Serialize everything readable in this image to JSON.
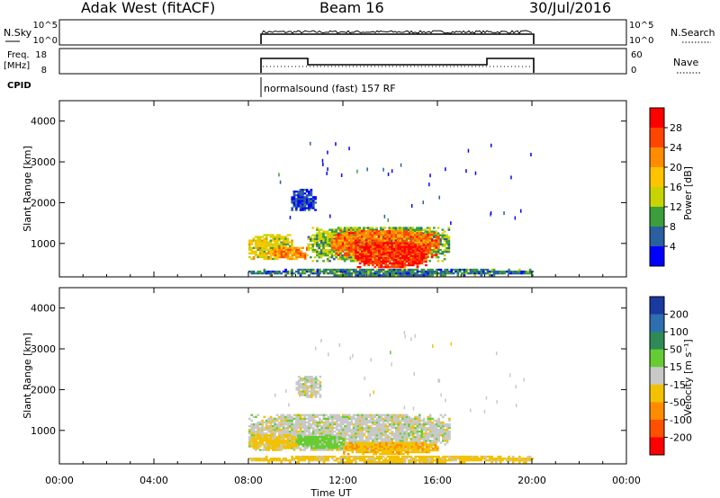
{
  "header": {
    "title": "Adak West (fitACF)",
    "beam": "Beam 16",
    "date": "30/Jul/2016"
  },
  "panels": {
    "nsky": {
      "label": "N.Sky",
      "left_ticks": [
        "10^5",
        "10^0"
      ],
      "right_ticks": [
        "10^5",
        "10^0"
      ],
      "right_label": "N.Search"
    },
    "freq": {
      "label_1": "Freq.",
      "label_2": "[MHz]",
      "left_ticks": [
        "18",
        "8"
      ],
      "right_ticks": [
        "60",
        "0"
      ],
      "right_label": "Nave"
    },
    "cpid": {
      "label": "CPID",
      "text": "normalsound (fast) 157 RF"
    }
  },
  "colorbars": {
    "power": {
      "label": "Power [dB]",
      "ticks": [
        "28",
        "24",
        "20",
        "16",
        "12",
        "8",
        "4"
      ],
      "colors": [
        "#ff0000",
        "#ff4500",
        "#ff8c00",
        "#ffc300",
        "#c8d400",
        "#3a9e3a",
        "#2a5fa0",
        "#0000ff"
      ]
    },
    "velocity": {
      "label": "Velocity [m s⁻¹]",
      "ticks": [
        "200",
        "100",
        "50",
        "15",
        "-15",
        "-50",
        "-100",
        "-200"
      ],
      "colors": [
        "#1a3aa0",
        "#2d6fb0",
        "#2e8b57",
        "#66cc33",
        "#c8c8c8",
        "#f2c200",
        "#ff8c00",
        "#ff5000",
        "#ff0000"
      ]
    }
  },
  "chart_data": [
    {
      "type": "heatmap",
      "title": "Power",
      "ylabel": "Slant Range [km]",
      "xlabel": "Time UT",
      "x_ticks": [
        "00:00",
        "04:00",
        "08:00",
        "12:00",
        "16:00",
        "20:00",
        "00:00"
      ],
      "y_ticks": [
        "1000",
        "2000",
        "3000",
        "4000"
      ],
      "xlim_hours": [
        0,
        24
      ],
      "ylim_km": [
        180,
        4500
      ],
      "data_time_range_hours": [
        8,
        20
      ],
      "regions_dB": [
        {
          "t": [
            8.0,
            9.8
          ],
          "range_km": [
            600,
            1200
          ],
          "value": 16
        },
        {
          "t": [
            9.0,
            10.5
          ],
          "range_km": [
            600,
            900
          ],
          "value": 22
        },
        {
          "t": [
            10.5,
            16.5
          ],
          "range_km": [
            550,
            1400
          ],
          "value": 12
        },
        {
          "t": [
            11.5,
            16.0
          ],
          "range_km": [
            650,
            1300
          ],
          "value": 24
        },
        {
          "t": [
            12.5,
            15.5
          ],
          "range_km": [
            400,
            1000
          ],
          "value": 28
        },
        {
          "t": [
            8.0,
            20.0
          ],
          "range_km": [
            200,
            350
          ],
          "value": 8
        },
        {
          "t": [
            9.8,
            10.8
          ],
          "range_km": [
            1800,
            2300
          ],
          "value": 4
        }
      ]
    },
    {
      "type": "heatmap",
      "title": "Velocity",
      "ylabel": "Slant Range [km]",
      "xlabel": "Time UT",
      "x_ticks": [
        "00:00",
        "04:00",
        "08:00",
        "12:00",
        "16:00",
        "20:00",
        "00:00"
      ],
      "y_ticks": [
        "1000",
        "2000",
        "3000",
        "4000"
      ],
      "xlim_hours": [
        0,
        24
      ],
      "ylim_km": [
        180,
        4500
      ],
      "data_time_range_hours": [
        8,
        20
      ],
      "regions_mps": [
        {
          "t": [
            8.0,
            16.5
          ],
          "range_km": [
            500,
            1400
          ],
          "value": 0
        },
        {
          "t": [
            8.0,
            10.0
          ],
          "range_km": [
            500,
            900
          ],
          "value": -30
        },
        {
          "t": [
            10.0,
            12.0
          ],
          "range_km": [
            550,
            850
          ],
          "value": 30
        },
        {
          "t": [
            12.0,
            16.0
          ],
          "range_km": [
            400,
            700
          ],
          "value": -40
        },
        {
          "t": [
            8.0,
            20.0
          ],
          "range_km": [
            200,
            350
          ],
          "value": -30
        },
        {
          "t": [
            10.0,
            11.0
          ],
          "range_km": [
            1800,
            2300
          ],
          "value": 0
        }
      ]
    }
  ]
}
